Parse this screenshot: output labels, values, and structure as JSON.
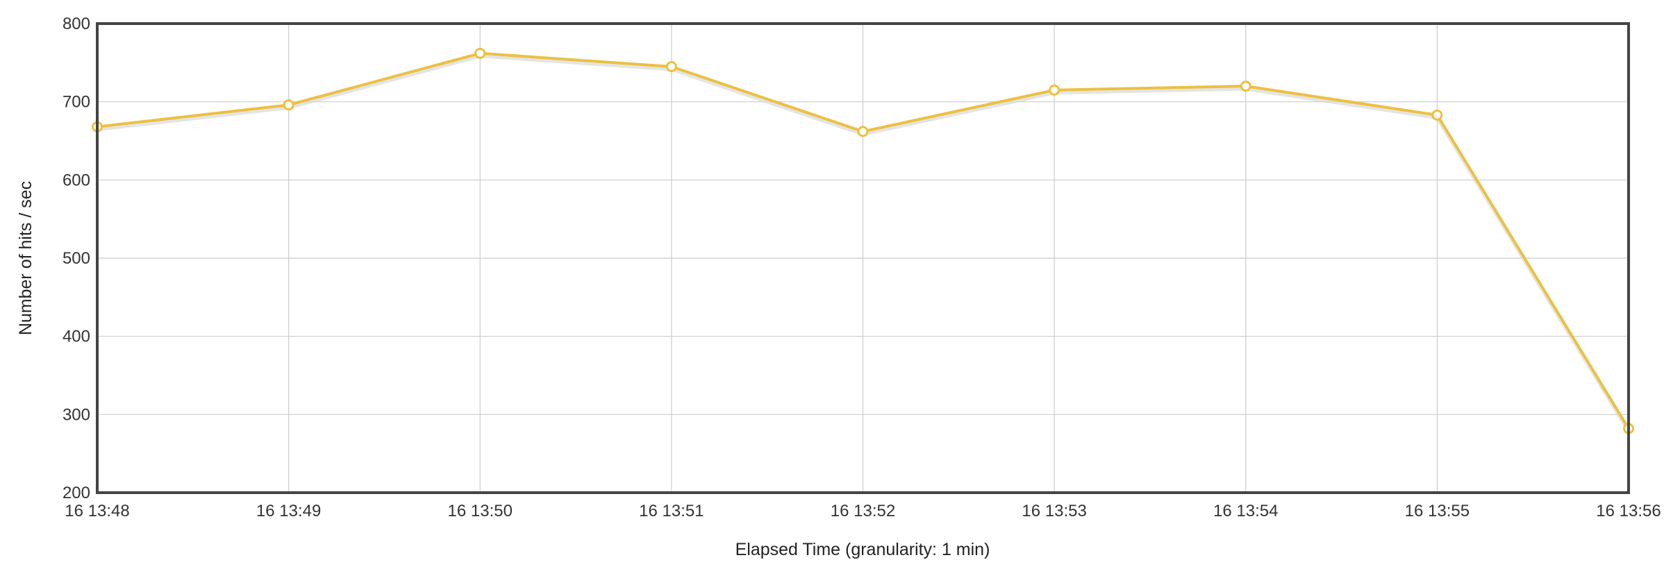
{
  "chart_data": {
    "type": "line",
    "xlabel": "Elapsed Time (granularity: 1 min)",
    "ylabel": "Number of hits / sec",
    "x": [
      "16 13:48",
      "16 13:49",
      "16 13:50",
      "16 13:51",
      "16 13:52",
      "16 13:53",
      "16 13:54",
      "16 13:55",
      "16 13:56"
    ],
    "series": [
      {
        "values": [
          668,
          696,
          762,
          745,
          662,
          715,
          720,
          683,
          282
        ],
        "color": "#ecc040"
      }
    ],
    "ylim": [
      200,
      800
    ],
    "yticks": [
      200,
      300,
      400,
      500,
      600,
      700,
      800
    ],
    "grid": true,
    "legend": "none",
    "colors": {
      "grid": "#cccccc",
      "frame": "#444444",
      "line": "#ecc040",
      "marker_fill": "#ffffff",
      "shadow": "#d8d8d8"
    }
  }
}
